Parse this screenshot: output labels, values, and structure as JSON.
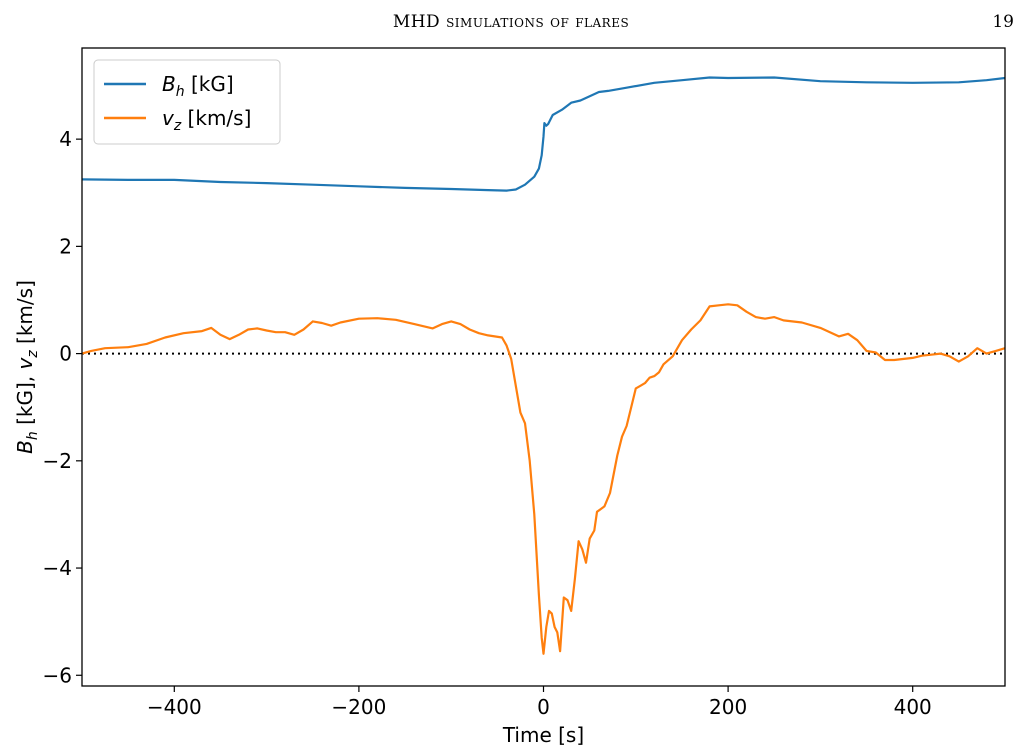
{
  "header": {
    "running_title": "MHD simulations of flares",
    "page_number": "19"
  },
  "chart_data": {
    "type": "line",
    "xlabel": "Time [s]",
    "ylabel_parts": {
      "b": "B",
      "b_sub": "h",
      "b_unit": " [kG], ",
      "v": "v",
      "v_sub": "z",
      "v_unit": " [km/s]"
    },
    "xlim": [
      -500,
      500
    ],
    "ylim": [
      -6.2,
      5.7
    ],
    "xticks": [
      -400,
      -200,
      0,
      200,
      400
    ],
    "xtick_labels": [
      "−400",
      "−200",
      "0",
      "200",
      "400"
    ],
    "yticks": [
      -6,
      -4,
      -2,
      0,
      2,
      4
    ],
    "ytick_labels": [
      "−6",
      "−4",
      "−2",
      "0",
      "2",
      "4"
    ],
    "legend_position": "top-left",
    "reference_line": {
      "y": 0,
      "style": "dotted",
      "color": "#000000"
    },
    "series": [
      {
        "name": "B_h [kG]",
        "label_main": "B",
        "label_sub": "h",
        "label_unit": " [kG]",
        "color": "#1f77b4",
        "points": [
          [
            -500,
            3.25
          ],
          [
            -450,
            3.24
          ],
          [
            -400,
            3.24
          ],
          [
            -350,
            3.2
          ],
          [
            -300,
            3.18
          ],
          [
            -250,
            3.15
          ],
          [
            -200,
            3.12
          ],
          [
            -150,
            3.09
          ],
          [
            -100,
            3.07
          ],
          [
            -60,
            3.05
          ],
          [
            -40,
            3.04
          ],
          [
            -30,
            3.06
          ],
          [
            -20,
            3.15
          ],
          [
            -10,
            3.3
          ],
          [
            -5,
            3.45
          ],
          [
            -2,
            3.7
          ],
          [
            0,
            4.05
          ],
          [
            1,
            4.3
          ],
          [
            3,
            4.25
          ],
          [
            5,
            4.28
          ],
          [
            10,
            4.45
          ],
          [
            20,
            4.55
          ],
          [
            30,
            4.68
          ],
          [
            40,
            4.72
          ],
          [
            50,
            4.8
          ],
          [
            60,
            4.88
          ],
          [
            70,
            4.9
          ],
          [
            90,
            4.96
          ],
          [
            120,
            5.05
          ],
          [
            150,
            5.1
          ],
          [
            180,
            5.15
          ],
          [
            200,
            5.14
          ],
          [
            250,
            5.15
          ],
          [
            300,
            5.08
          ],
          [
            350,
            5.06
          ],
          [
            400,
            5.05
          ],
          [
            450,
            5.06
          ],
          [
            480,
            5.1
          ],
          [
            500,
            5.14
          ]
        ]
      },
      {
        "name": "v_z [km/s]",
        "label_main": "v",
        "label_sub": "z",
        "label_unit": " [km/s]",
        "color": "#ff7f0e",
        "points": [
          [
            -500,
            0.0
          ],
          [
            -490,
            0.05
          ],
          [
            -475,
            0.1
          ],
          [
            -450,
            0.12
          ],
          [
            -430,
            0.18
          ],
          [
            -410,
            0.3
          ],
          [
            -390,
            0.38
          ],
          [
            -370,
            0.42
          ],
          [
            -360,
            0.48
          ],
          [
            -350,
            0.35
          ],
          [
            -340,
            0.27
          ],
          [
            -330,
            0.35
          ],
          [
            -320,
            0.45
          ],
          [
            -310,
            0.47
          ],
          [
            -300,
            0.43
          ],
          [
            -290,
            0.4
          ],
          [
            -280,
            0.4
          ],
          [
            -270,
            0.35
          ],
          [
            -260,
            0.45
          ],
          [
            -250,
            0.6
          ],
          [
            -240,
            0.57
          ],
          [
            -230,
            0.52
          ],
          [
            -220,
            0.58
          ],
          [
            -200,
            0.65
          ],
          [
            -180,
            0.66
          ],
          [
            -160,
            0.63
          ],
          [
            -140,
            0.55
          ],
          [
            -120,
            0.47
          ],
          [
            -110,
            0.55
          ],
          [
            -100,
            0.6
          ],
          [
            -90,
            0.55
          ],
          [
            -80,
            0.45
          ],
          [
            -70,
            0.38
          ],
          [
            -60,
            0.34
          ],
          [
            -45,
            0.3
          ],
          [
            -40,
            0.15
          ],
          [
            -35,
            -0.1
          ],
          [
            -30,
            -0.6
          ],
          [
            -25,
            -1.1
          ],
          [
            -20,
            -1.3
          ],
          [
            -15,
            -2.0
          ],
          [
            -10,
            -3.0
          ],
          [
            -5,
            -4.5
          ],
          [
            -2,
            -5.3
          ],
          [
            0,
            -5.6
          ],
          [
            3,
            -5.1
          ],
          [
            6,
            -4.8
          ],
          [
            9,
            -4.85
          ],
          [
            12,
            -5.1
          ],
          [
            15,
            -5.2
          ],
          [
            18,
            -5.55
          ],
          [
            22,
            -4.55
          ],
          [
            26,
            -4.6
          ],
          [
            30,
            -4.8
          ],
          [
            34,
            -4.2
          ],
          [
            38,
            -3.5
          ],
          [
            42,
            -3.65
          ],
          [
            46,
            -3.9
          ],
          [
            50,
            -3.45
          ],
          [
            55,
            -3.3
          ],
          [
            58,
            -2.95
          ],
          [
            62,
            -2.9
          ],
          [
            66,
            -2.85
          ],
          [
            72,
            -2.6
          ],
          [
            80,
            -1.9
          ],
          [
            85,
            -1.55
          ],
          [
            90,
            -1.35
          ],
          [
            95,
            -1.0
          ],
          [
            100,
            -0.65
          ],
          [
            105,
            -0.6
          ],
          [
            110,
            -0.55
          ],
          [
            115,
            -0.45
          ],
          [
            120,
            -0.42
          ],
          [
            125,
            -0.35
          ],
          [
            130,
            -0.2
          ],
          [
            140,
            -0.05
          ],
          [
            150,
            0.25
          ],
          [
            160,
            0.45
          ],
          [
            170,
            0.62
          ],
          [
            180,
            0.88
          ],
          [
            190,
            0.9
          ],
          [
            200,
            0.92
          ],
          [
            210,
            0.9
          ],
          [
            220,
            0.78
          ],
          [
            230,
            0.68
          ],
          [
            240,
            0.65
          ],
          [
            250,
            0.68
          ],
          [
            260,
            0.62
          ],
          [
            280,
            0.58
          ],
          [
            300,
            0.48
          ],
          [
            320,
            0.32
          ],
          [
            330,
            0.37
          ],
          [
            340,
            0.25
          ],
          [
            350,
            0.05
          ],
          [
            360,
            0.02
          ],
          [
            370,
            -0.12
          ],
          [
            380,
            -0.12
          ],
          [
            400,
            -0.08
          ],
          [
            410,
            -0.04
          ],
          [
            420,
            -0.02
          ],
          [
            430,
            0.0
          ],
          [
            440,
            -0.05
          ],
          [
            450,
            -0.15
          ],
          [
            460,
            -0.05
          ],
          [
            470,
            0.1
          ],
          [
            480,
            0.0
          ],
          [
            490,
            0.05
          ],
          [
            500,
            0.1
          ]
        ]
      }
    ]
  }
}
